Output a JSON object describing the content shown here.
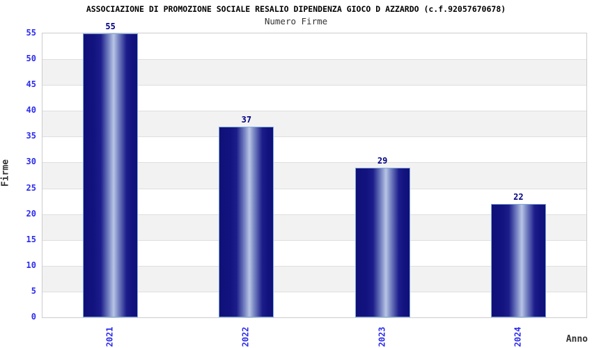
{
  "chart_data": {
    "type": "bar",
    "title": "ASSOCIAZIONE DI PROMOZIONE SOCIALE RESALIO DIPENDENZA GIOCO D AZZARDO (c.f.92057670678)",
    "subtitle": "Numero Firme",
    "xlabel": "Anno",
    "ylabel": "Firme",
    "categories": [
      "2021",
      "2022",
      "2023",
      "2024"
    ],
    "values": [
      55,
      37,
      29,
      22
    ],
    "ylim": [
      0,
      55
    ],
    "ytick_step": 5,
    "yticks": [
      0,
      5,
      10,
      15,
      20,
      25,
      30,
      35,
      40,
      45,
      50,
      55
    ],
    "grid": "horizontal-alternating-bands",
    "legend": "none",
    "colors": {
      "bar_dark": "#101078",
      "bar_light": "#b9c5e5",
      "bar_border": "#82aadc",
      "tick_label_blue": "#2b2bee",
      "value_label_navy": "#000082",
      "axis_label_gray": "#333333",
      "band_gray": "#f2f2f2",
      "band_white": "#ffffff",
      "plot_border": "#cccccc",
      "title_black": "#000000"
    }
  }
}
